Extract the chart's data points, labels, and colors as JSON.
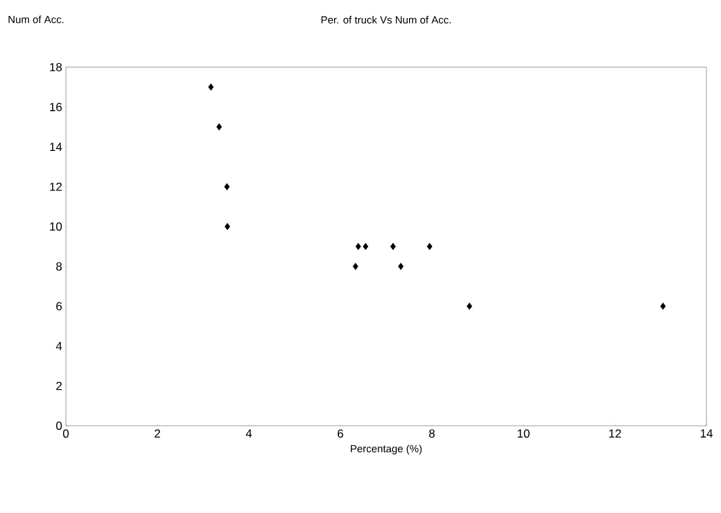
{
  "chart_data": {
    "type": "scatter",
    "title": "Per. of truck Vs Num of Acc.",
    "xlabel": "Percentage (%)",
    "ylabel": "Num of Acc.",
    "x": [
      3.17,
      3.35,
      3.52,
      3.53,
      6.33,
      6.39,
      6.55,
      7.15,
      7.32,
      7.95,
      8.82,
      13.05
    ],
    "values": [
      17,
      15,
      12,
      10,
      8,
      9,
      9,
      9,
      8,
      9,
      6,
      6
    ],
    "color": "#000000",
    "marker": "diamond",
    "xlim": [
      0,
      14
    ],
    "ylim": [
      0,
      18
    ],
    "xticks": [
      0,
      2,
      4,
      6,
      8,
      10,
      12,
      14
    ],
    "yticks": [
      0,
      2,
      4,
      6,
      8,
      10,
      12,
      14,
      16,
      18
    ],
    "grid": false
  }
}
